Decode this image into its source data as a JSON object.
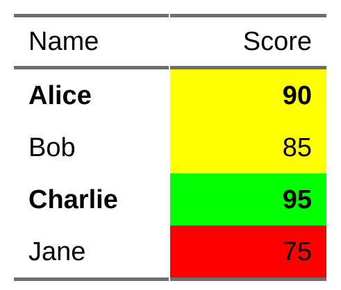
{
  "table": {
    "headers": {
      "name": "Name",
      "score": "Score"
    },
    "rows": [
      {
        "name": "Alice",
        "score": "90",
        "bold": true,
        "score_color": "#ffff00"
      },
      {
        "name": "Bob",
        "score": "85",
        "bold": false,
        "score_color": "#ffff00"
      },
      {
        "name": "Charlie",
        "score": "95",
        "bold": true,
        "score_color": "#00ff00"
      },
      {
        "name": "Jane",
        "score": "75",
        "bold": false,
        "score_color": "#ff0000"
      }
    ],
    "rule_color": "#6e6e6e"
  }
}
